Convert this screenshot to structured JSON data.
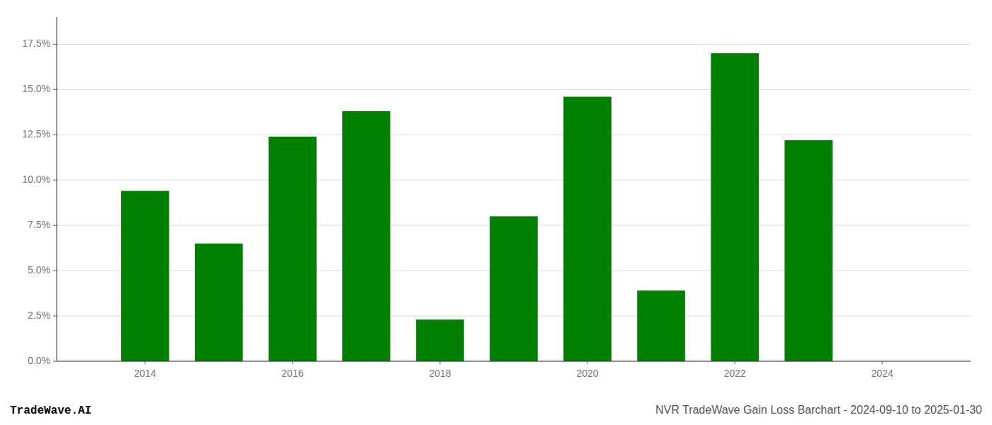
{
  "chart_data": {
    "type": "bar",
    "title": "NVR TradeWave Gain Loss Barchart - 2024-09-10 to 2025-01-30",
    "annotations": [
      "TradeWave.AI"
    ],
    "x": [
      2014,
      2015,
      2016,
      2017,
      2018,
      2019,
      2020,
      2021,
      2022,
      2023
    ],
    "values": [
      0.094,
      0.065,
      0.124,
      0.138,
      0.023,
      0.08,
      0.146,
      0.039,
      0.17,
      0.122
    ],
    "color": "#008000",
    "xlim": [
      2012.8,
      2025.2
    ],
    "xticks": [
      2014,
      2016,
      2018,
      2020,
      2022,
      2024
    ],
    "ylim": [
      0,
      0.19
    ],
    "yticks": [
      {
        "value": 0.0,
        "label": "0.0%"
      },
      {
        "value": 0.025,
        "label": "2.5%"
      },
      {
        "value": 0.05,
        "label": "5.0%"
      },
      {
        "value": 0.075,
        "label": "7.5%"
      },
      {
        "value": 0.1,
        "label": "10.0%"
      },
      {
        "value": 0.125,
        "label": "12.5%"
      },
      {
        "value": 0.15,
        "label": "15.0%"
      },
      {
        "value": 0.175,
        "label": "17.5%"
      }
    ],
    "grid": true
  }
}
